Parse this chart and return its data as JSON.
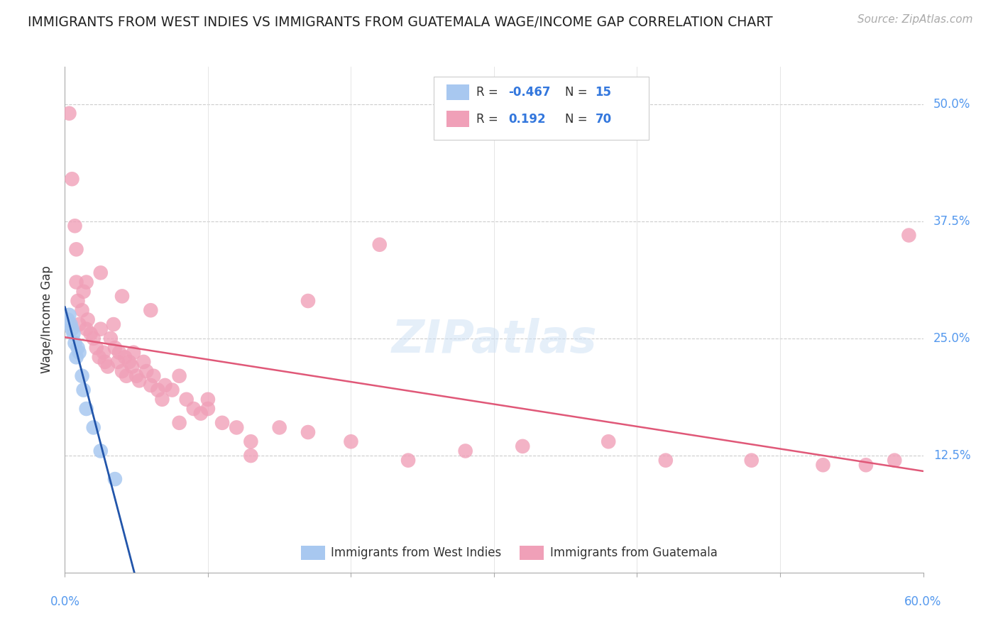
{
  "title": "IMMIGRANTS FROM WEST INDIES VS IMMIGRANTS FROM GUATEMALA WAGE/INCOME GAP CORRELATION CHART",
  "source": "Source: ZipAtlas.com",
  "ylabel": "Wage/Income Gap",
  "ytick_values": [
    0.125,
    0.25,
    0.375,
    0.5
  ],
  "ytick_labels": [
    "12.5%",
    "25.0%",
    "37.5%",
    "50.0%"
  ],
  "legend_label1": "Immigrants from West Indies",
  "legend_label2": "Immigrants from Guatemala",
  "blue_color": "#a8c8f0",
  "pink_color": "#f0a0b8",
  "blue_line_color": "#2255aa",
  "pink_line_color": "#e05878",
  "watermark": "ZIPatlas",
  "blue_x": [
    0.002,
    0.003,
    0.004,
    0.005,
    0.006,
    0.007,
    0.008,
    0.009,
    0.01,
    0.012,
    0.013,
    0.015,
    0.02,
    0.025,
    0.035
  ],
  "blue_y": [
    0.27,
    0.275,
    0.265,
    0.26,
    0.255,
    0.245,
    0.23,
    0.24,
    0.235,
    0.21,
    0.195,
    0.175,
    0.155,
    0.13,
    0.1
  ],
  "pink_x": [
    0.003,
    0.005,
    0.007,
    0.008,
    0.009,
    0.01,
    0.012,
    0.013,
    0.015,
    0.016,
    0.018,
    0.02,
    0.022,
    0.024,
    0.025,
    0.027,
    0.028,
    0.03,
    0.032,
    0.034,
    0.035,
    0.037,
    0.038,
    0.04,
    0.042,
    0.043,
    0.045,
    0.047,
    0.048,
    0.05,
    0.052,
    0.055,
    0.057,
    0.06,
    0.062,
    0.065,
    0.068,
    0.07,
    0.075,
    0.08,
    0.085,
    0.09,
    0.095,
    0.1,
    0.11,
    0.12,
    0.13,
    0.15,
    0.17,
    0.2,
    0.24,
    0.28,
    0.32,
    0.38,
    0.42,
    0.48,
    0.53,
    0.56,
    0.58,
    0.59,
    0.008,
    0.015,
    0.025,
    0.04,
    0.06,
    0.08,
    0.1,
    0.13,
    0.17,
    0.22
  ],
  "pink_y": [
    0.49,
    0.42,
    0.37,
    0.31,
    0.29,
    0.265,
    0.28,
    0.3,
    0.26,
    0.27,
    0.255,
    0.25,
    0.24,
    0.23,
    0.26,
    0.235,
    0.225,
    0.22,
    0.25,
    0.265,
    0.24,
    0.225,
    0.235,
    0.215,
    0.23,
    0.21,
    0.225,
    0.22,
    0.235,
    0.21,
    0.205,
    0.225,
    0.215,
    0.2,
    0.21,
    0.195,
    0.185,
    0.2,
    0.195,
    0.21,
    0.185,
    0.175,
    0.17,
    0.175,
    0.16,
    0.155,
    0.14,
    0.155,
    0.15,
    0.14,
    0.12,
    0.13,
    0.135,
    0.14,
    0.12,
    0.12,
    0.115,
    0.115,
    0.12,
    0.36,
    0.345,
    0.31,
    0.32,
    0.295,
    0.28,
    0.16,
    0.185,
    0.125,
    0.29,
    0.35
  ]
}
